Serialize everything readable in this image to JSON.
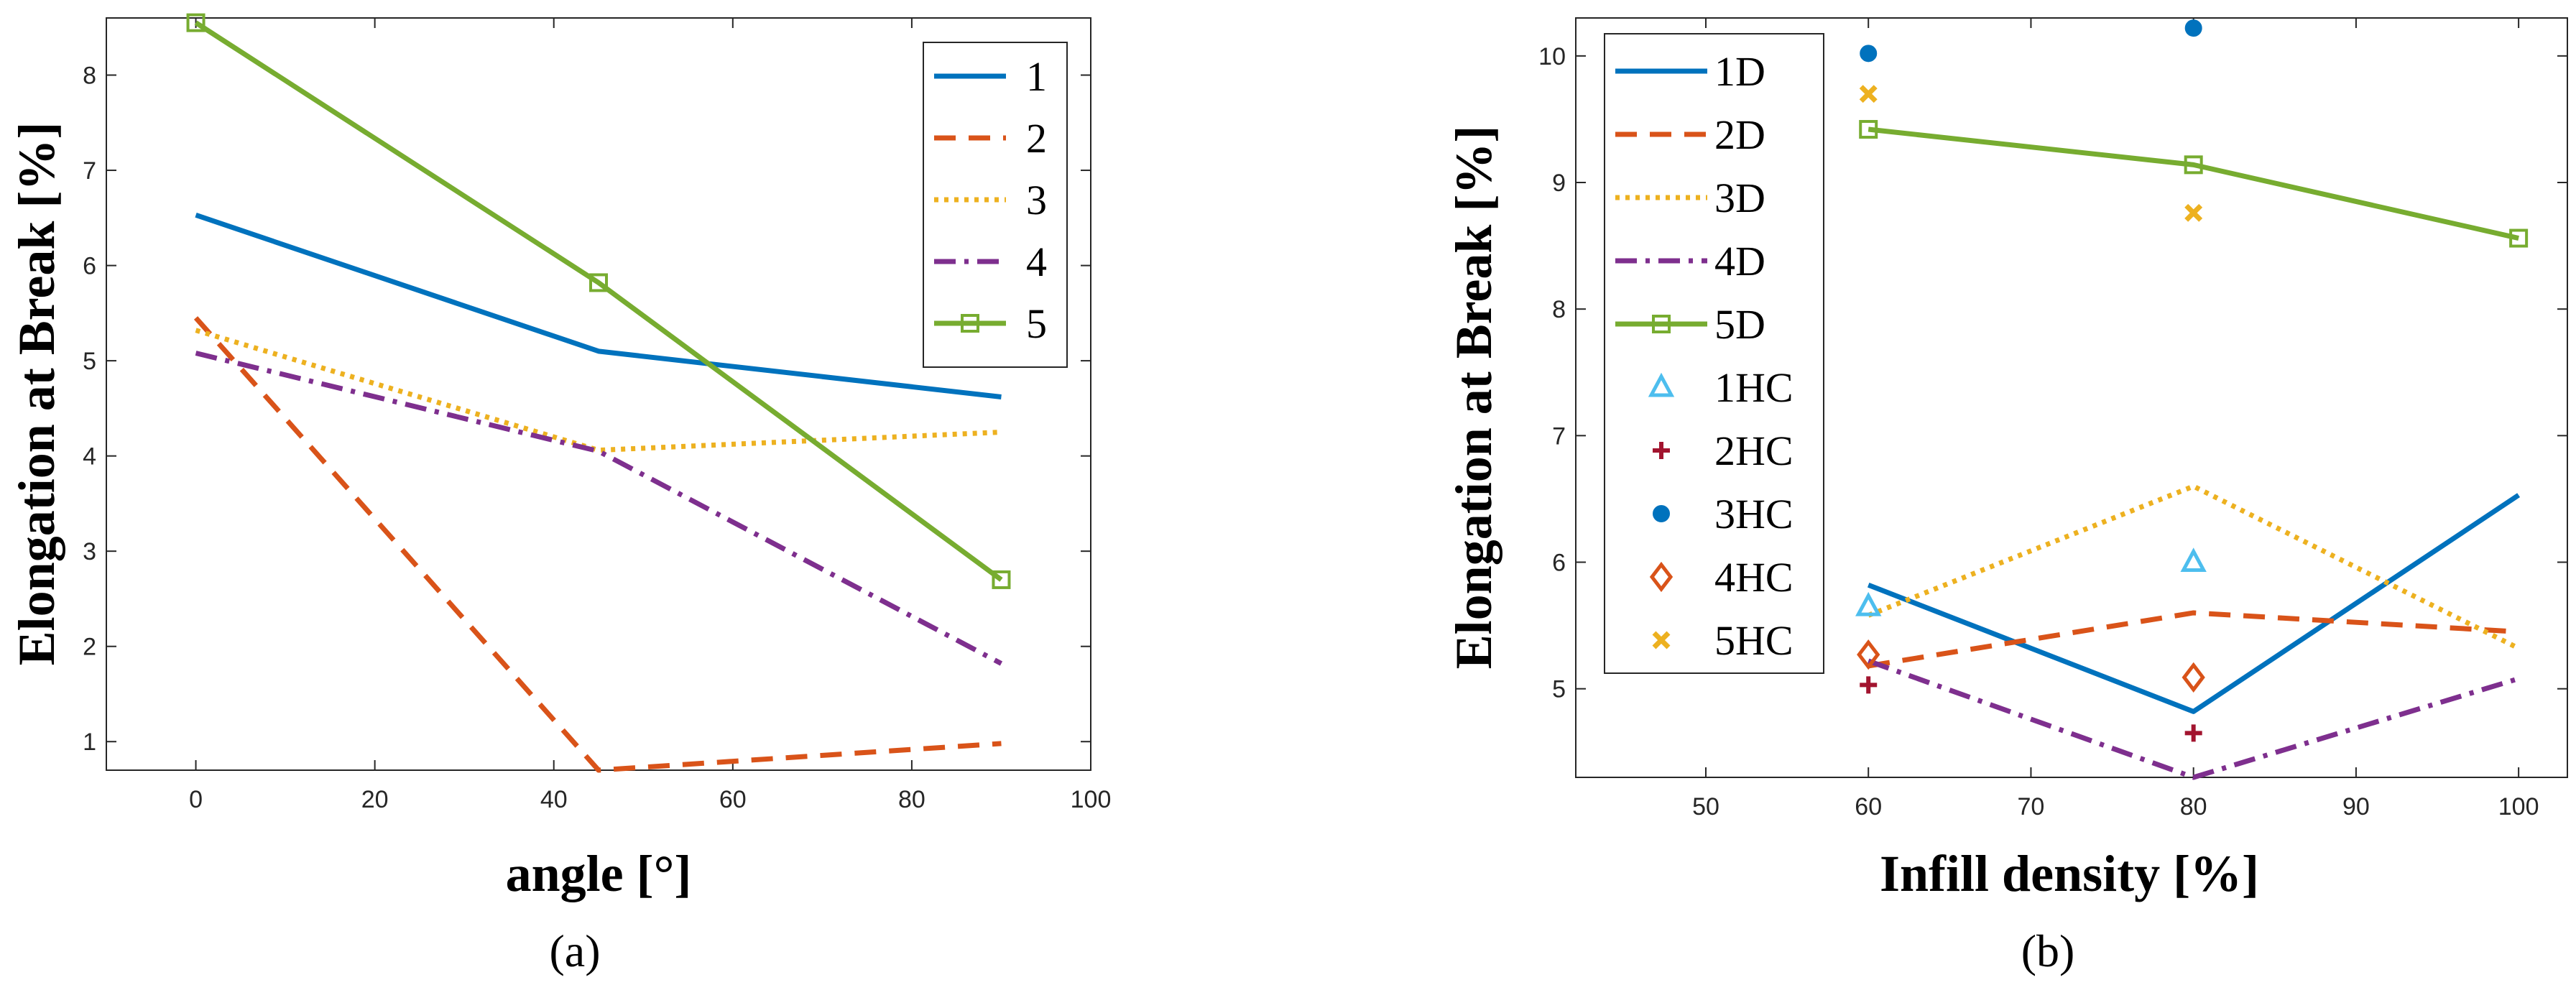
{
  "chart_data": [
    {
      "type": "line",
      "panel_label": "(a)",
      "xlabel": "angle [°]",
      "ylabel": "Elongation at Break [%]",
      "xlim": [
        -10,
        100
      ],
      "ylim": [
        0.7,
        8.6
      ],
      "xticks": [
        "0",
        "20",
        "40",
        "60",
        "80",
        "100"
      ],
      "yticks": [
        "1",
        "2",
        "3",
        "4",
        "5",
        "6",
        "7",
        "8"
      ],
      "x": [
        0,
        45,
        90
      ],
      "series": [
        {
          "name": "1",
          "values": [
            6.53,
            5.1,
            4.62
          ],
          "color": "#0072BD",
          "dash": "solid",
          "marker": "none"
        },
        {
          "name": "2",
          "values": [
            5.45,
            0.7,
            0.98
          ],
          "color": "#D95319",
          "dash": "dashed",
          "marker": "none"
        },
        {
          "name": "3",
          "values": [
            5.32,
            4.06,
            4.25
          ],
          "color": "#EDB120",
          "dash": "dotted",
          "marker": "none"
        },
        {
          "name": "4",
          "values": [
            5.08,
            4.05,
            1.82
          ],
          "color": "#7E2F8E",
          "dash": "dashdot",
          "marker": "none"
        },
        {
          "name": "5",
          "values": [
            8.55,
            5.82,
            2.7
          ],
          "color": "#77AC30",
          "dash": "solid",
          "marker": "square"
        }
      ],
      "legend_position": "top-right"
    },
    {
      "type": "line",
      "panel_label": "(b)",
      "xlabel": "Infill density [%]",
      "ylabel": "Elongation at Break [%]",
      "xlim": [
        42,
        103
      ],
      "ylim": [
        4.3,
        10.3
      ],
      "xticks": [
        "50",
        "60",
        "70",
        "80",
        "90",
        "100"
      ],
      "yticks": [
        "5",
        "6",
        "7",
        "8",
        "9",
        "10"
      ],
      "x": [
        60,
        80,
        100
      ],
      "series": [
        {
          "name": "1D",
          "values": [
            5.82,
            4.82,
            6.53
          ],
          "color": "#0072BD",
          "dash": "solid",
          "marker": "none"
        },
        {
          "name": "2D",
          "values": [
            5.18,
            5.6,
            5.45
          ],
          "color": "#D95319",
          "dash": "dashed",
          "marker": "none"
        },
        {
          "name": "3D",
          "values": [
            5.58,
            6.6,
            5.32
          ],
          "color": "#EDB120",
          "dash": "dotted",
          "marker": "none"
        },
        {
          "name": "4D",
          "values": [
            5.22,
            4.3,
            5.08
          ],
          "color": "#7E2F8E",
          "dash": "dashdot",
          "marker": "none"
        },
        {
          "name": "5D",
          "values": [
            9.42,
            9.14,
            8.56
          ],
          "color": "#77AC30",
          "dash": "solid",
          "marker": "square"
        }
      ],
      "scatter": [
        {
          "name": "1HC",
          "x": [
            60,
            80
          ],
          "values": [
            5.65,
            6.0
          ],
          "color": "#4DBEEE",
          "marker": "triangle"
        },
        {
          "name": "2HC",
          "x": [
            60,
            80
          ],
          "values": [
            5.03,
            4.65
          ],
          "color": "#A2142F",
          "marker": "plus"
        },
        {
          "name": "3HC",
          "x": [
            60,
            80
          ],
          "values": [
            10.02,
            10.22
          ],
          "color": "#0072BD",
          "marker": "circle"
        },
        {
          "name": "4HC",
          "x": [
            60,
            80
          ],
          "values": [
            5.27,
            5.09
          ],
          "color": "#D95319",
          "marker": "diamond"
        },
        {
          "name": "5HC",
          "x": [
            60,
            80
          ],
          "values": [
            9.7,
            8.76
          ],
          "color": "#EDB120",
          "marker": "x"
        }
      ],
      "legend_position": "top-left"
    }
  ]
}
